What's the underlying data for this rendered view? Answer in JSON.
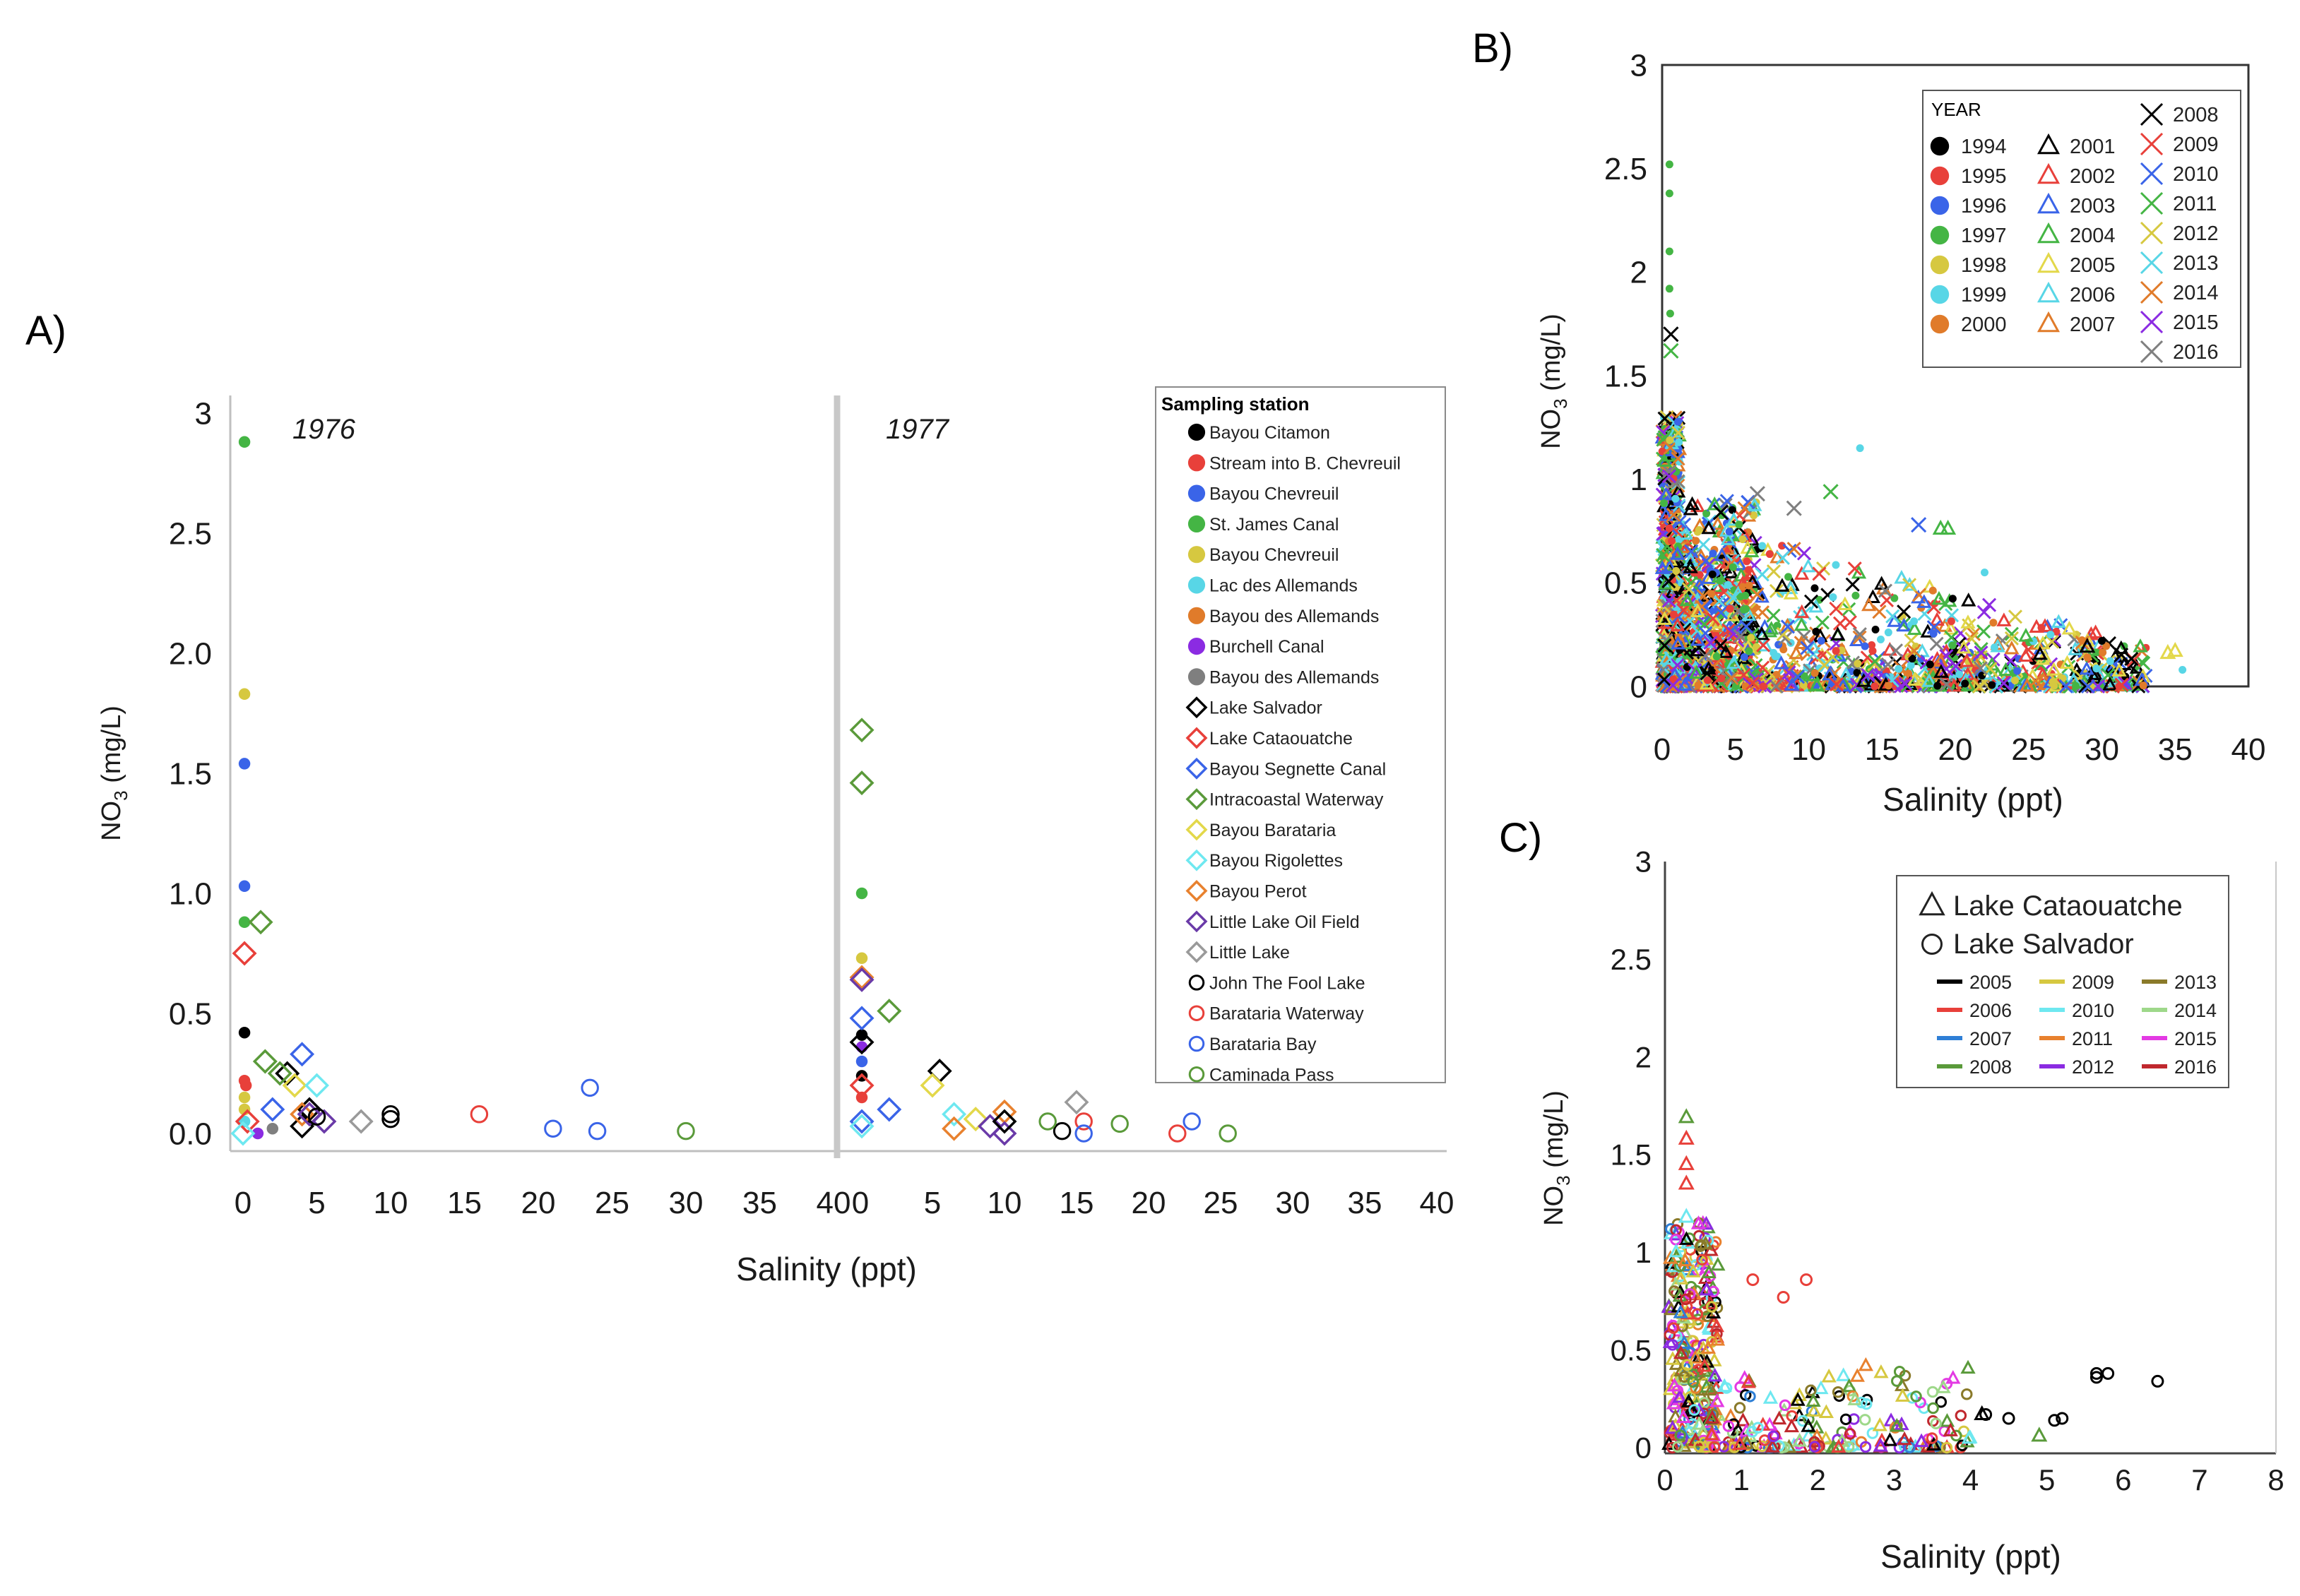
{
  "colors": {
    "black": "#000000",
    "red": "#e8403a",
    "blue": "#3a64e8",
    "green": "#44b544",
    "yellow": "#d6c840",
    "cyan": "#58d6e6",
    "orange": "#e07b2a",
    "purple": "#8b2be2",
    "gray": "#7f7f7f",
    "darkgreen": "#5a9a3a",
    "khaki": "#e3d84a",
    "lightcyan": "#6ee8f0",
    "darkorange": "#e8812e",
    "darkpurple": "#6a3aa8",
    "lightgray": "#9a9a9a",
    "olive": "#8a7a2a",
    "lightgreen": "#9ed88a",
    "magenta": "#e33ae3",
    "darkred": "#c0282e",
    "sky": "#2e7fd6"
  },
  "chart_data": [
    {
      "id": "A",
      "type": "scatter",
      "panel_label": "A)",
      "xlabel": "Salinity (ppt)",
      "ylabel_main": "NO",
      "ylabel_sub": "3",
      "ylabel_unit": " (mg/L)",
      "y_ticks": [
        "0.0",
        "0.5",
        "1.0",
        "1.5",
        "2.0",
        "2.5",
        "3"
      ],
      "y_tick_values": [
        0,
        0.5,
        1.0,
        1.5,
        2.0,
        2.5,
        3
      ],
      "x_ticks": [
        "0",
        "5",
        "10",
        "15",
        "20",
        "25",
        "30",
        "35",
        "40"
      ],
      "x_tick_values": [
        0,
        5,
        10,
        15,
        20,
        25,
        30,
        35,
        40
      ],
      "xlim": [
        0,
        40
      ],
      "ylim": [
        0,
        3
      ],
      "sub_panels": [
        "1976",
        "1977"
      ],
      "legend_title": "Sampling station",
      "stations": [
        {
          "name": "Bayou Citamon",
          "marker": "dot",
          "color": "#000000"
        },
        {
          "name": "Stream into B. Chevreuil",
          "marker": "dot",
          "color": "#e8403a"
        },
        {
          "name": "Bayou Chevreuil",
          "marker": "dot",
          "color": "#3a64e8"
        },
        {
          "name": "St. James Canal",
          "marker": "dot",
          "color": "#44b544"
        },
        {
          "name": "Bayou Chevreuil",
          "marker": "dot",
          "color": "#d6c840"
        },
        {
          "name": "Lac des Allemands",
          "marker": "dot",
          "color": "#58d6e6"
        },
        {
          "name": "Bayou des Allemands",
          "marker": "dot",
          "color": "#e07b2a"
        },
        {
          "name": "Burchell Canal",
          "marker": "dot",
          "color": "#8b2be2"
        },
        {
          "name": "Bayou des Allemands",
          "marker": "dot",
          "color": "#7f7f7f"
        },
        {
          "name": "Lake Salvador",
          "marker": "diamond",
          "color": "#000000"
        },
        {
          "name": "Lake Cataouatche",
          "marker": "diamond",
          "color": "#e8403a"
        },
        {
          "name": "Bayou Segnette Canal",
          "marker": "diamond",
          "color": "#3a64e8"
        },
        {
          "name": "Intracoastal Waterway",
          "marker": "diamond",
          "color": "#5a9a3a"
        },
        {
          "name": "Bayou Barataria",
          "marker": "diamond",
          "color": "#e3d84a"
        },
        {
          "name": "Bayou Rigolettes",
          "marker": "diamond",
          "color": "#6ee8f0"
        },
        {
          "name": "Bayou Perot",
          "marker": "diamond",
          "color": "#e8812e"
        },
        {
          "name": "Little Lake Oil Field",
          "marker": "diamond",
          "color": "#6a3aa8"
        },
        {
          "name": "Little Lake",
          "marker": "diamond",
          "color": "#9a9a9a"
        },
        {
          "name": "John The Fool Lake",
          "marker": "circle",
          "color": "#000000"
        },
        {
          "name": "Barataria Waterway",
          "marker": "circle",
          "color": "#e8403a"
        },
        {
          "name": "Barataria Bay",
          "marker": "circle",
          "color": "#3a64e8"
        },
        {
          "name": "Caminada Pass",
          "marker": "circle",
          "color": "#5a9a3a"
        }
      ],
      "points_1976": [
        {
          "s": 0,
          "x": 0.1,
          "y": 0.42
        },
        {
          "s": 1,
          "x": 0.1,
          "y": 0.22
        },
        {
          "s": 1,
          "x": 0.2,
          "y": 0.2
        },
        {
          "s": 2,
          "x": 0.1,
          "y": 1.54
        },
        {
          "s": 2,
          "x": 0.1,
          "y": 1.03
        },
        {
          "s": 3,
          "x": 0.1,
          "y": 2.88
        },
        {
          "s": 3,
          "x": 0.1,
          "y": 0.88
        },
        {
          "s": 4,
          "x": 0.1,
          "y": 1.83
        },
        {
          "s": 4,
          "x": 0.1,
          "y": 0.15
        },
        {
          "s": 4,
          "x": 0.1,
          "y": 0.1
        },
        {
          "s": 5,
          "x": 0.1,
          "y": 0.05
        },
        {
          "s": 7,
          "x": 1.0,
          "y": 0.0
        },
        {
          "s": 8,
          "x": 2.0,
          "y": 0.02
        },
        {
          "s": 9,
          "x": 3.0,
          "y": 0.25
        },
        {
          "s": 9,
          "x": 4.0,
          "y": 0.03
        },
        {
          "s": 9,
          "x": 4.5,
          "y": 0.1
        },
        {
          "s": 10,
          "x": 0.1,
          "y": 0.75
        },
        {
          "s": 10,
          "x": 0.3,
          "y": 0.05
        },
        {
          "s": 11,
          "x": 4.0,
          "y": 0.33
        },
        {
          "s": 11,
          "x": 2.0,
          "y": 0.1
        },
        {
          "s": 12,
          "x": 1.2,
          "y": 0.88
        },
        {
          "s": 12,
          "x": 1.5,
          "y": 0.3
        },
        {
          "s": 12,
          "x": 2.5,
          "y": 0.25
        },
        {
          "s": 13,
          "x": 3.5,
          "y": 0.2
        },
        {
          "s": 14,
          "x": 5.0,
          "y": 0.2
        },
        {
          "s": 14,
          "x": 0.0,
          "y": 0.0
        },
        {
          "s": 15,
          "x": 4.0,
          "y": 0.08
        },
        {
          "s": 16,
          "x": 5.5,
          "y": 0.05
        },
        {
          "s": 16,
          "x": 4.5,
          "y": 0.08
        },
        {
          "s": 17,
          "x": 8.0,
          "y": 0.05
        },
        {
          "s": 18,
          "x": 10.0,
          "y": 0.08
        },
        {
          "s": 18,
          "x": 10.0,
          "y": 0.06
        },
        {
          "s": 18,
          "x": 5.0,
          "y": 0.07
        },
        {
          "s": 19,
          "x": 16.0,
          "y": 0.08
        },
        {
          "s": 20,
          "x": 21.0,
          "y": 0.02
        },
        {
          "s": 20,
          "x": 23.5,
          "y": 0.19
        },
        {
          "s": 20,
          "x": 24.0,
          "y": 0.01
        },
        {
          "s": 21,
          "x": 30.0,
          "y": 0.01
        }
      ],
      "points_1977": [
        {
          "s": 3,
          "x": 0.1,
          "y": 1.0
        },
        {
          "s": 4,
          "x": 0.1,
          "y": 0.73
        },
        {
          "s": 0,
          "x": 0.1,
          "y": 0.41
        },
        {
          "s": 0,
          "x": 0.1,
          "y": 0.24
        },
        {
          "s": 2,
          "x": 0.1,
          "y": 0.3
        },
        {
          "s": 7,
          "x": 0.1,
          "y": 0.36
        },
        {
          "s": 1,
          "x": 0.1,
          "y": 0.15
        },
        {
          "s": 12,
          "x": 0.1,
          "y": 1.68
        },
        {
          "s": 12,
          "x": 0.1,
          "y": 1.46
        },
        {
          "s": 15,
          "x": 0.1,
          "y": 0.65
        },
        {
          "s": 16,
          "x": 0.1,
          "y": 0.64
        },
        {
          "s": 12,
          "x": 2.0,
          "y": 0.51
        },
        {
          "s": 11,
          "x": 0.1,
          "y": 0.48
        },
        {
          "s": 9,
          "x": 0.1,
          "y": 0.38
        },
        {
          "s": 10,
          "x": 0.1,
          "y": 0.2
        },
        {
          "s": 11,
          "x": 2.0,
          "y": 0.1
        },
        {
          "s": 11,
          "x": 0.1,
          "y": 0.05
        },
        {
          "s": 14,
          "x": 0.1,
          "y": 0.03
        },
        {
          "s": 9,
          "x": 5.5,
          "y": 0.26
        },
        {
          "s": 13,
          "x": 5.0,
          "y": 0.2
        },
        {
          "s": 14,
          "x": 6.5,
          "y": 0.08
        },
        {
          "s": 13,
          "x": 8.0,
          "y": 0.06
        },
        {
          "s": 15,
          "x": 10.0,
          "y": 0.09
        },
        {
          "s": 15,
          "x": 6.5,
          "y": 0.02
        },
        {
          "s": 16,
          "x": 9.0,
          "y": 0.03
        },
        {
          "s": 16,
          "x": 10.0,
          "y": 0.0
        },
        {
          "s": 9,
          "x": 10.0,
          "y": 0.05
        },
        {
          "s": 18,
          "x": 14.0,
          "y": 0.01
        },
        {
          "s": 17,
          "x": 15.0,
          "y": 0.13
        },
        {
          "s": 21,
          "x": 13.0,
          "y": 0.05
        },
        {
          "s": 21,
          "x": 18.0,
          "y": 0.04
        },
        {
          "s": 19,
          "x": 15.5,
          "y": 0.05
        },
        {
          "s": 20,
          "x": 15.5,
          "y": 0.0
        },
        {
          "s": 19,
          "x": 22.0,
          "y": 0.0
        },
        {
          "s": 20,
          "x": 23.0,
          "y": 0.05
        },
        {
          "s": 21,
          "x": 25.5,
          "y": 0.0
        }
      ]
    },
    {
      "id": "B",
      "type": "scatter",
      "panel_label": "B)",
      "xlabel": "Salinity (ppt)",
      "ylabel_main": "NO",
      "ylabel_sub": "3",
      "ylabel_unit": " (mg/L)",
      "y_ticks": [
        "0",
        "0.5",
        "1",
        "1.5",
        "2",
        "2.5",
        "3"
      ],
      "y_tick_values": [
        0,
        0.5,
        1,
        1.5,
        2,
        2.5,
        3
      ],
      "x_ticks": [
        "0",
        "5",
        "10",
        "15",
        "20",
        "25",
        "30",
        "35",
        "40"
      ],
      "x_tick_values": [
        0,
        5,
        10,
        15,
        20,
        25,
        30,
        35,
        40
      ],
      "xlim": [
        0,
        40
      ],
      "ylim": [
        0,
        3
      ],
      "legend_title": "YEAR",
      "years": [
        {
          "year": "1994",
          "marker": "dot",
          "color": "#000000"
        },
        {
          "year": "1995",
          "marker": "dot",
          "color": "#e8403a"
        },
        {
          "year": "1996",
          "marker": "dot",
          "color": "#3a64e8"
        },
        {
          "year": "1997",
          "marker": "dot",
          "color": "#44b544"
        },
        {
          "year": "1998",
          "marker": "dot",
          "color": "#d6c840"
        },
        {
          "year": "1999",
          "marker": "dot",
          "color": "#58d6e6"
        },
        {
          "year": "2000",
          "marker": "dot",
          "color": "#e07b2a"
        },
        {
          "year": "2001",
          "marker": "triangle",
          "color": "#000000"
        },
        {
          "year": "2002",
          "marker": "triangle",
          "color": "#e8403a"
        },
        {
          "year": "2003",
          "marker": "triangle",
          "color": "#3a64e8"
        },
        {
          "year": "2004",
          "marker": "triangle",
          "color": "#44b544"
        },
        {
          "year": "2005",
          "marker": "triangle",
          "color": "#e3d84a"
        },
        {
          "year": "2006",
          "marker": "triangle",
          "color": "#58d6e6"
        },
        {
          "year": "2007",
          "marker": "triangle",
          "color": "#e07b2a"
        },
        {
          "year": "2008",
          "marker": "x",
          "color": "#000000"
        },
        {
          "year": "2009",
          "marker": "x",
          "color": "#e8403a"
        },
        {
          "year": "2010",
          "marker": "x",
          "color": "#3a64e8"
        },
        {
          "year": "2011",
          "marker": "x",
          "color": "#44b544"
        },
        {
          "year": "2012",
          "marker": "x",
          "color": "#d6c840"
        },
        {
          "year": "2013",
          "marker": "x",
          "color": "#58d6e6"
        },
        {
          "year": "2014",
          "marker": "x",
          "color": "#e07b2a"
        },
        {
          "year": "2015",
          "marker": "x",
          "color": "#8b2be2"
        },
        {
          "year": "2016",
          "marker": "x",
          "color": "#7f7f7f"
        }
      ]
    },
    {
      "id": "C",
      "type": "scatter",
      "panel_label": "C)",
      "xlabel": "Salinity (ppt)",
      "ylabel_main": "NO",
      "ylabel_sub": "3",
      "ylabel_unit": " (mg/L)",
      "y_ticks": [
        "0",
        "0.5",
        "1",
        "1.5",
        "2",
        "2.5",
        "3"
      ],
      "y_tick_values": [
        0,
        0.5,
        1,
        1.5,
        2,
        2.5,
        3
      ],
      "x_ticks": [
        "0",
        "1",
        "2",
        "3",
        "4",
        "5",
        "6",
        "7",
        "8"
      ],
      "x_tick_values": [
        0,
        1,
        2,
        3,
        4,
        5,
        6,
        7,
        8
      ],
      "xlim": [
        0,
        8
      ],
      "ylim": [
        0,
        3
      ],
      "marker_legend": [
        {
          "label": "Lake Cataouatche",
          "marker": "triangle"
        },
        {
          "label": "Lake Salvador",
          "marker": "circle"
        }
      ],
      "years": [
        {
          "year": "2005",
          "color": "#000000"
        },
        {
          "year": "2006",
          "color": "#e8403a"
        },
        {
          "year": "2007",
          "color": "#2e7fd6"
        },
        {
          "year": "2008",
          "color": "#5a9a3a"
        },
        {
          "year": "2009",
          "color": "#d6c840"
        },
        {
          "year": "2010",
          "color": "#6ee8f0"
        },
        {
          "year": "2011",
          "color": "#e8812e"
        },
        {
          "year": "2012",
          "color": "#8b2be2"
        },
        {
          "year": "2013",
          "color": "#8a7a2a"
        },
        {
          "year": "2014",
          "color": "#9ed88a"
        },
        {
          "year": "2015",
          "color": "#e33ae3"
        },
        {
          "year": "2016",
          "color": "#c0282e"
        }
      ],
      "highlight_points": [
        {
          "m": "circle",
          "c": 0,
          "x": 5.65,
          "y": 0.38
        },
        {
          "m": "circle",
          "c": 0,
          "x": 5.65,
          "y": 0.36
        },
        {
          "m": "circle",
          "c": 0,
          "x": 5.8,
          "y": 0.38
        },
        {
          "m": "circle",
          "c": 0,
          "x": 6.45,
          "y": 0.34
        },
        {
          "m": "circle",
          "c": 0,
          "x": 5.1,
          "y": 0.14
        },
        {
          "m": "circle",
          "c": 0,
          "x": 5.2,
          "y": 0.15
        },
        {
          "m": "circle",
          "c": 0,
          "x": 4.5,
          "y": 0.15
        },
        {
          "m": "circle",
          "c": 0,
          "x": 4.2,
          "y": 0.17
        },
        {
          "m": "triangle",
          "c": 0,
          "x": 4.15,
          "y": 0.17
        },
        {
          "m": "triangle",
          "c": 3,
          "x": 4.9,
          "y": 0.06
        },
        {
          "m": "circle",
          "c": 1,
          "x": 1.15,
          "y": 0.86
        },
        {
          "m": "circle",
          "c": 1,
          "x": 1.55,
          "y": 0.77
        },
        {
          "m": "circle",
          "c": 1,
          "x": 1.85,
          "y": 0.86
        },
        {
          "m": "triangle",
          "c": 1,
          "x": 0.28,
          "y": 1.58
        },
        {
          "m": "triangle",
          "c": 1,
          "x": 0.28,
          "y": 1.45
        },
        {
          "m": "triangle",
          "c": 1,
          "x": 0.28,
          "y": 1.35
        },
        {
          "m": "triangle",
          "c": 3,
          "x": 0.28,
          "y": 1.69
        },
        {
          "m": "triangle",
          "c": 5,
          "x": 0.28,
          "y": 1.18
        }
      ]
    }
  ]
}
